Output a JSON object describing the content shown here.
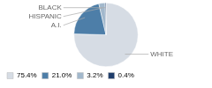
{
  "chart_data": {
    "type": "pie",
    "categories": [
      "WHITE",
      "A.I.",
      "HISPANIC",
      "BLACK"
    ],
    "values": [
      75.4,
      21.0,
      3.2,
      0.4
    ],
    "value_labels": [
      "75.4%",
      "21.0%",
      "3.2%",
      "0.4%"
    ],
    "colors": [
      "#d6dce4",
      "#4d7ea8",
      "#a2b8cc",
      "#1f3d6b"
    ],
    "legend": "lower left"
  }
}
